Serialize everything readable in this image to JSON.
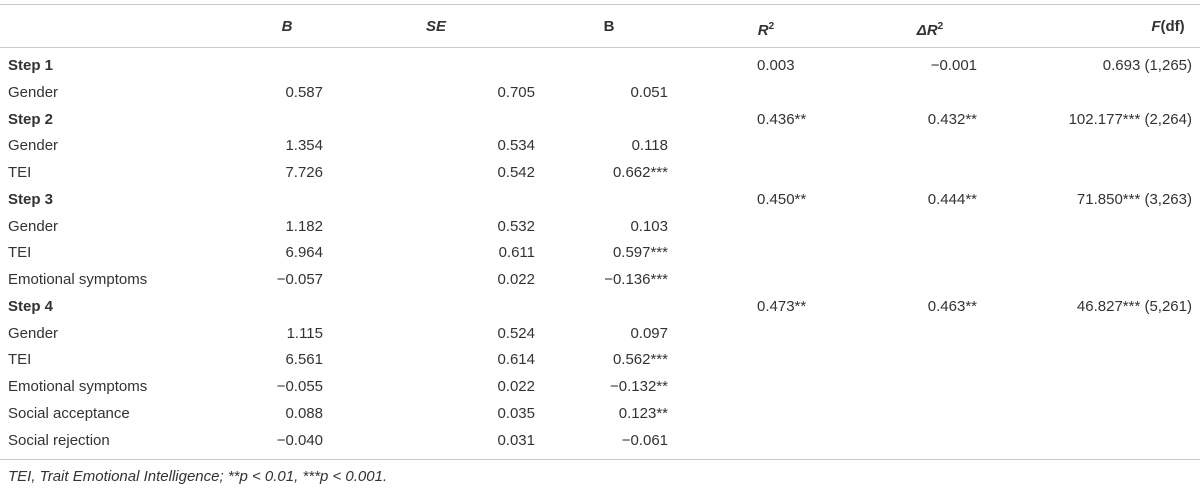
{
  "header": {
    "columns": [
      [
        "B"
      ],
      [
        "SE"
      ],
      [
        "B"
      ],
      [
        "R",
        "2"
      ],
      [
        "ΔR",
        "2"
      ],
      [
        "F",
        "(df)"
      ]
    ]
  },
  "steps": [
    {
      "label": "Step 1",
      "R2": "0.003",
      "dR2": "−0.001",
      "F": "0.693 (1,265)",
      "rows": [
        [
          "Gender",
          "0.587",
          "0.705",
          "0.051"
        ]
      ]
    },
    {
      "label": "Step 2",
      "R2": "0.436**",
      "dR2": "0.432**",
      "F": "102.177*** (2,264)",
      "rows": [
        [
          "Gender",
          "1.354",
          "0.534",
          "0.118"
        ],
        [
          "TEI",
          "7.726",
          "0.542",
          "0.662***"
        ]
      ]
    },
    {
      "label": "Step 3",
      "R2": "0.450**",
      "dR2": "0.444**",
      "F": "71.850*** (3,263)",
      "rows": [
        [
          "Gender",
          "1.182",
          "0.532",
          "0.103"
        ],
        [
          "TEI",
          "6.964",
          "0.611",
          "0.597***"
        ],
        [
          "Emotional symptoms",
          "−0.057",
          "0.022",
          "−0.136***"
        ]
      ]
    },
    {
      "label": "Step 4",
      "R2": "0.473**",
      "dR2": "0.463**",
      "F": "46.827*** (5,261)",
      "rows": [
        [
          "Gender",
          "1.115",
          "0.524",
          "0.097"
        ],
        [
          "TEI",
          "6.561",
          "0.614",
          "0.562***"
        ],
        [
          "Emotional symptoms",
          "−0.055",
          "0.022",
          "−0.132**"
        ],
        [
          "Social acceptance",
          "0.088",
          "0.035",
          "0.123**"
        ],
        [
          "Social rejection",
          "−0.040",
          "0.031",
          "−0.061"
        ]
      ]
    }
  ],
  "note": "TEI, Trait Emotional Intelligence; **p < 0.01, ***p < 0.001."
}
